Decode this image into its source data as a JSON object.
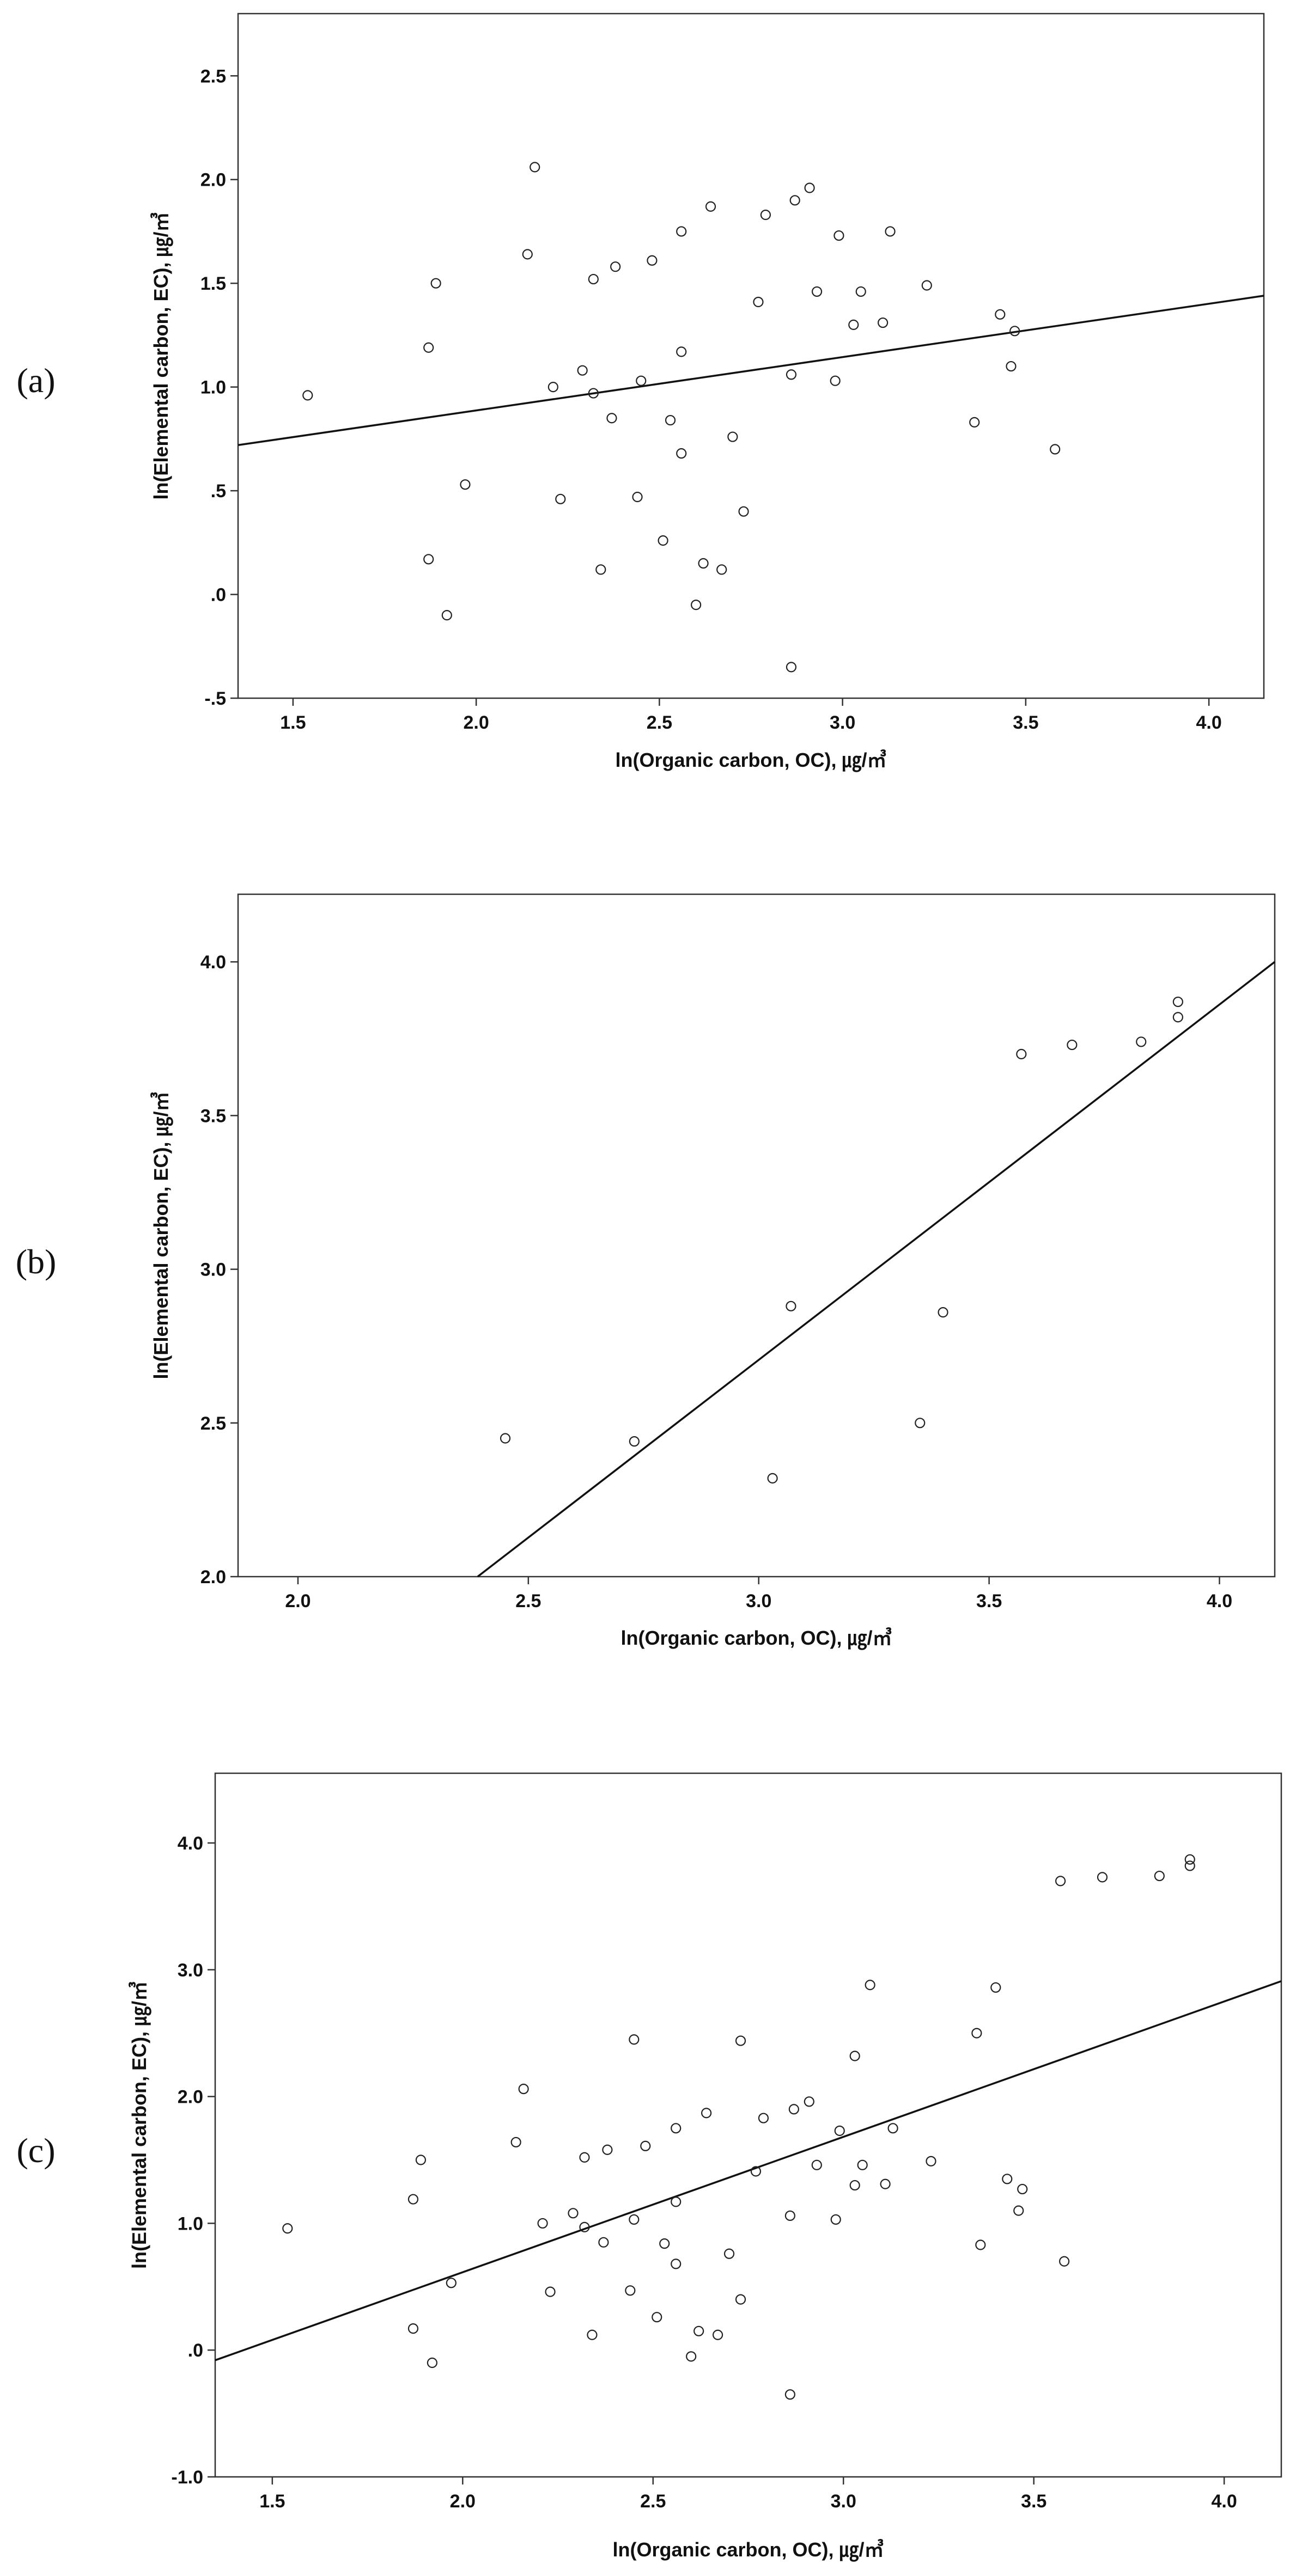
{
  "chart_data": [
    {
      "type": "scatter",
      "panel_label": "(a)",
      "xlabel": "ln(Organic carbon, OC), ㎍/㎥",
      "ylabel": "ln(Elemental carbon, EC), ㎍/㎥",
      "xlim": [
        1.35,
        4.15
      ],
      "ylim": [
        -0.5,
        2.8
      ],
      "xticks": [
        1.5,
        2.0,
        2.5,
        3.0,
        3.5,
        4.0
      ],
      "xtick_labels": [
        "1.5",
        "2.0",
        "2.5",
        "3.0",
        "3.5",
        "4.0"
      ],
      "yticks": [
        -0.5,
        0.0,
        0.5,
        1.0,
        1.5,
        2.0,
        2.5
      ],
      "ytick_labels": [
        "-.5",
        ".0",
        ".5",
        "1.0",
        "1.5",
        "2.0",
        "2.5"
      ],
      "grid": false,
      "fit_line": {
        "x": [
          1.35,
          4.15
        ],
        "y": [
          0.72,
          1.44
        ]
      },
      "points": [
        [
          1.54,
          0.96
        ],
        [
          1.87,
          0.17
        ],
        [
          1.87,
          1.19
        ],
        [
          1.89,
          1.5
        ],
        [
          1.92,
          -0.1
        ],
        [
          1.97,
          0.53
        ],
        [
          2.14,
          1.64
        ],
        [
          2.16,
          2.06
        ],
        [
          2.21,
          1.0
        ],
        [
          2.23,
          0.46
        ],
        [
          2.29,
          1.08
        ],
        [
          2.32,
          0.97
        ],
        [
          2.32,
          1.52
        ],
        [
          2.34,
          0.12
        ],
        [
          2.37,
          0.85
        ],
        [
          2.38,
          1.58
        ],
        [
          2.44,
          0.47
        ],
        [
          2.45,
          1.03
        ],
        [
          2.48,
          1.61
        ],
        [
          2.51,
          0.26
        ],
        [
          2.53,
          0.84
        ],
        [
          2.56,
          0.68
        ],
        [
          2.56,
          1.17
        ],
        [
          2.56,
          1.75
        ],
        [
          2.6,
          -0.05
        ],
        [
          2.62,
          0.15
        ],
        [
          2.64,
          1.87
        ],
        [
          2.67,
          0.12
        ],
        [
          2.7,
          0.76
        ],
        [
          2.73,
          0.4
        ],
        [
          2.77,
          1.41
        ],
        [
          2.79,
          1.83
        ],
        [
          2.86,
          1.06
        ],
        [
          2.86,
          -0.35
        ],
        [
          2.87,
          1.9
        ],
        [
          2.91,
          1.96
        ],
        [
          2.93,
          1.46
        ],
        [
          2.98,
          1.03
        ],
        [
          2.99,
          1.73
        ],
        [
          3.03,
          1.3
        ],
        [
          3.05,
          1.46
        ],
        [
          3.11,
          1.31
        ],
        [
          3.13,
          1.75
        ],
        [
          3.23,
          1.49
        ],
        [
          3.36,
          0.83
        ],
        [
          3.43,
          1.35
        ],
        [
          3.46,
          1.1
        ],
        [
          3.47,
          1.27
        ],
        [
          3.58,
          0.7
        ]
      ]
    },
    {
      "type": "scatter",
      "panel_label": "(b)",
      "xlabel": "ln(Organic carbon, OC), ㎍/㎥",
      "ylabel": "ln(Elemental carbon, EC), ㎍/㎥",
      "xlim": [
        1.87,
        4.12
      ],
      "ylim": [
        2.0,
        4.22
      ],
      "xticks": [
        2.0,
        2.5,
        3.0,
        3.5,
        4.0
      ],
      "xtick_labels": [
        "2.0",
        "2.5",
        "3.0",
        "3.5",
        "4.0"
      ],
      "yticks": [
        2.0,
        2.5,
        3.0,
        3.5,
        4.0
      ],
      "ytick_labels": [
        "2.0",
        "2.5",
        "3.0",
        "3.5",
        "4.0"
      ],
      "grid": false,
      "fit_line": {
        "x": [
          2.39,
          4.12
        ],
        "y": [
          2.0,
          4.0
        ]
      },
      "points": [
        [
          2.45,
          2.45
        ],
        [
          2.73,
          2.44
        ],
        [
          3.03,
          2.32
        ],
        [
          3.07,
          2.88
        ],
        [
          3.35,
          2.5
        ],
        [
          3.4,
          2.86
        ],
        [
          3.57,
          3.7
        ],
        [
          3.68,
          3.73
        ],
        [
          3.83,
          3.74
        ],
        [
          3.91,
          3.82
        ],
        [
          3.91,
          3.87
        ]
      ]
    },
    {
      "type": "scatter",
      "panel_label": "(c)",
      "xlabel": "ln(Organic carbon, OC), ㎍/㎥",
      "ylabel": "ln(Elemental carbon, EC), ㎍/㎥",
      "xlim": [
        1.35,
        4.15
      ],
      "ylim": [
        -1.0,
        4.55
      ],
      "xticks": [
        1.5,
        2.0,
        2.5,
        3.0,
        3.5,
        4.0
      ],
      "xtick_labels": [
        "1.5",
        "2.0",
        "2.5",
        "3.0",
        "3.5",
        "4.0"
      ],
      "yticks": [
        -1.0,
        0.0,
        1.0,
        2.0,
        3.0,
        4.0
      ],
      "ytick_labels": [
        "-1.0",
        ".0",
        "1.0",
        "2.0",
        "3.0",
        "4.0"
      ],
      "grid": false,
      "fit_line": {
        "x": [
          1.35,
          4.15
        ],
        "y": [
          -0.08,
          2.91
        ]
      },
      "points": [
        [
          1.54,
          0.96
        ],
        [
          1.87,
          0.17
        ],
        [
          1.87,
          1.19
        ],
        [
          1.89,
          1.5
        ],
        [
          1.92,
          -0.1
        ],
        [
          1.97,
          0.53
        ],
        [
          2.14,
          1.64
        ],
        [
          2.16,
          2.06
        ],
        [
          2.21,
          1.0
        ],
        [
          2.23,
          0.46
        ],
        [
          2.29,
          1.08
        ],
        [
          2.32,
          0.97
        ],
        [
          2.32,
          1.52
        ],
        [
          2.34,
          0.12
        ],
        [
          2.37,
          0.85
        ],
        [
          2.38,
          1.58
        ],
        [
          2.44,
          0.47
        ],
        [
          2.45,
          1.03
        ],
        [
          2.48,
          1.61
        ],
        [
          2.51,
          0.26
        ],
        [
          2.53,
          0.84
        ],
        [
          2.56,
          0.68
        ],
        [
          2.56,
          1.17
        ],
        [
          2.56,
          1.75
        ],
        [
          2.6,
          -0.05
        ],
        [
          2.62,
          0.15
        ],
        [
          2.64,
          1.87
        ],
        [
          2.67,
          0.12
        ],
        [
          2.7,
          0.76
        ],
        [
          2.73,
          0.4
        ],
        [
          2.77,
          1.41
        ],
        [
          2.79,
          1.83
        ],
        [
          2.86,
          1.06
        ],
        [
          2.86,
          -0.35
        ],
        [
          2.87,
          1.9
        ],
        [
          2.91,
          1.96
        ],
        [
          2.93,
          1.46
        ],
        [
          2.98,
          1.03
        ],
        [
          2.99,
          1.73
        ],
        [
          3.03,
          1.3
        ],
        [
          3.05,
          1.46
        ],
        [
          3.11,
          1.31
        ],
        [
          3.13,
          1.75
        ],
        [
          3.23,
          1.49
        ],
        [
          3.36,
          0.83
        ],
        [
          3.43,
          1.35
        ],
        [
          3.46,
          1.1
        ],
        [
          3.47,
          1.27
        ],
        [
          3.58,
          0.7
        ],
        [
          2.45,
          2.45
        ],
        [
          2.73,
          2.44
        ],
        [
          3.03,
          2.32
        ],
        [
          3.07,
          2.88
        ],
        [
          3.35,
          2.5
        ],
        [
          3.4,
          2.86
        ],
        [
          3.57,
          3.7
        ],
        [
          3.68,
          3.73
        ],
        [
          3.83,
          3.74
        ],
        [
          3.91,
          3.82
        ],
        [
          3.91,
          3.87
        ]
      ]
    }
  ]
}
